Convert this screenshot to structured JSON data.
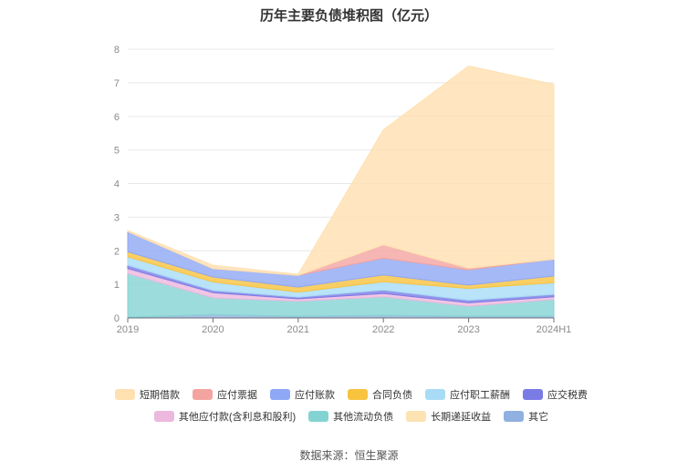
{
  "chart_data": {
    "type": "area",
    "stacked": true,
    "title": "历年主要负债堆积图（亿元）",
    "categories": [
      "2019",
      "2020",
      "2021",
      "2022",
      "2023",
      "2024H1"
    ],
    "y_ticks": [
      "0",
      "1",
      "2",
      "3",
      "4",
      "5",
      "6",
      "7",
      "8"
    ],
    "ylim": [
      0,
      8
    ],
    "grid": true,
    "legend_position": "bottom",
    "series": [
      {
        "name": "其它",
        "color": "#8fb0e0",
        "values": [
          0.02,
          0.1,
          0.05,
          0.08,
          0.05,
          0.05
        ]
      },
      {
        "name": "其他流动负债",
        "color": "#84d3d3",
        "values": [
          1.3,
          0.5,
          0.45,
          0.55,
          0.3,
          0.5
        ]
      },
      {
        "name": "其他应付款(含利息和股利)",
        "color": "#ecb8de",
        "values": [
          0.15,
          0.15,
          0.07,
          0.1,
          0.1,
          0.08
        ]
      },
      {
        "name": "应交税费",
        "color": "#7b7be6",
        "values": [
          0.1,
          0.07,
          0.05,
          0.1,
          0.08,
          0.07
        ]
      },
      {
        "name": "应付职工薪酬",
        "color": "#a8dcf6",
        "values": [
          0.25,
          0.25,
          0.15,
          0.25,
          0.35,
          0.35
        ]
      },
      {
        "name": "合同负债",
        "color": "#f8c33f",
        "values": [
          0.15,
          0.15,
          0.15,
          0.2,
          0.1,
          0.2
        ]
      },
      {
        "name": "应付账款",
        "color": "#8ea8f5",
        "values": [
          0.6,
          0.25,
          0.35,
          0.5,
          0.45,
          0.5
        ]
      },
      {
        "name": "应付票据",
        "color": "#f4a4a0",
        "values": [
          0.0,
          0.0,
          0.0,
          0.4,
          0.05,
          0.0
        ]
      },
      {
        "name": "长期递延收益",
        "color": "#fde2b2",
        "values": [
          0.0,
          0.0,
          0.0,
          0.0,
          0.0,
          0.0
        ]
      },
      {
        "name": "短期借款",
        "color": "#ffe0b0",
        "values": [
          0.03,
          0.1,
          0.03,
          3.42,
          6.02,
          5.2
        ]
      }
    ],
    "legend_order": [
      "短期借款",
      "应付票据",
      "应付账款",
      "合同负债",
      "应付职工薪酬",
      "应交税费",
      "其他应付款(含利息和股利)",
      "其他流动负债",
      "长期递延收益",
      "其它"
    ]
  },
  "source": "数据来源：恒生聚源"
}
